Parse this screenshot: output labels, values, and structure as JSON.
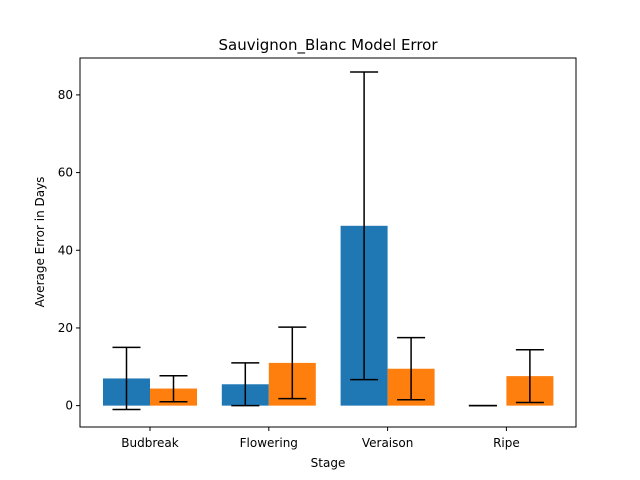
{
  "chart_data": {
    "type": "bar",
    "title": "Sauvignon_Blanc Model Error",
    "xlabel": "Stage",
    "ylabel": "Average Error in Days",
    "categories": [
      "Budbreak",
      "Flowering",
      "Veraison",
      "Ripe"
    ],
    "ylim": [
      -5.5,
      89.5
    ],
    "yticks": [
      0,
      20,
      40,
      60,
      80
    ],
    "grid": false,
    "legend": "none",
    "series": [
      {
        "color": "#1f77b4",
        "values": [
          7.0,
          5.5,
          46.3,
          0.0
        ],
        "err_low": [
          -1.0,
          0.0,
          6.7,
          0.0
        ],
        "err_high": [
          15.0,
          11.0,
          85.9,
          0.0
        ]
      },
      {
        "color": "#ff7f0e",
        "values": [
          4.4,
          11.0,
          9.5,
          7.6
        ],
        "err_low": [
          1.0,
          1.8,
          1.5,
          0.8
        ],
        "err_high": [
          7.7,
          20.2,
          17.5,
          14.4
        ]
      }
    ]
  }
}
